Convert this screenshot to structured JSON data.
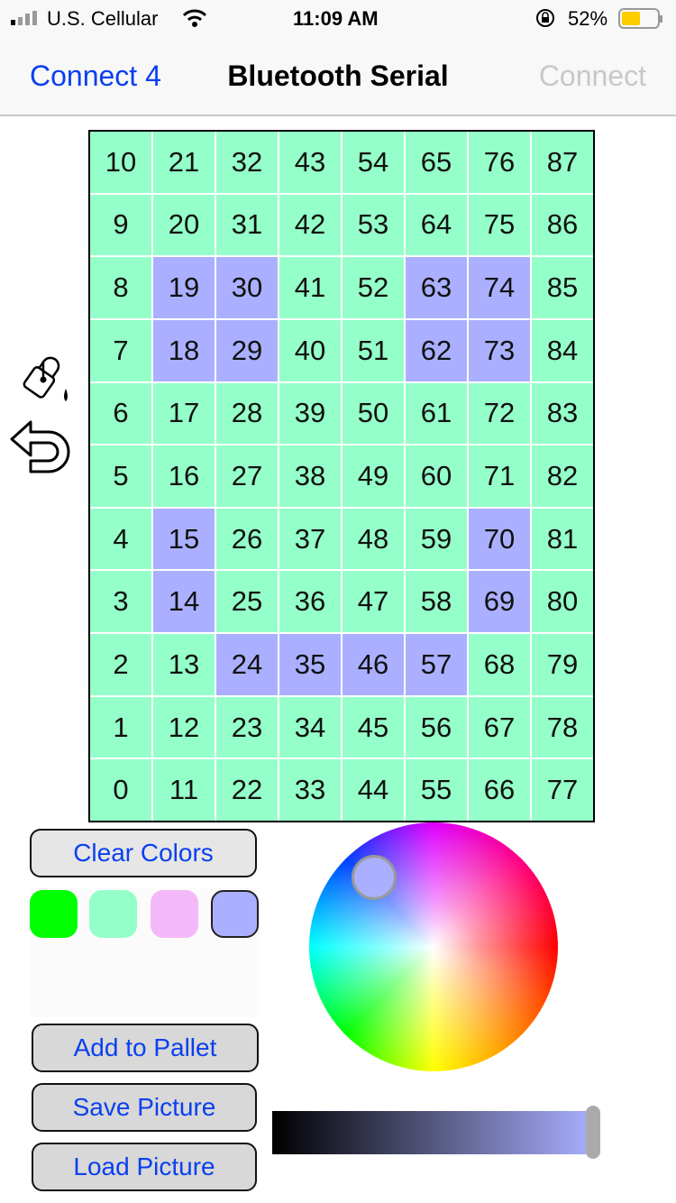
{
  "status": {
    "carrier": "U.S. Cellular",
    "time": "11:09 AM",
    "battery": "52%",
    "battery_level": 52
  },
  "nav": {
    "back": "Connect 4",
    "title": "Bluetooth Serial",
    "action": "Connect"
  },
  "colors": {
    "green": "#94ffc8",
    "purple": "#aab0ff",
    "accent": "#0a40ee"
  },
  "grid": {
    "rows": [
      [
        10,
        21,
        32,
        43,
        54,
        65,
        76,
        87
      ],
      [
        9,
        20,
        31,
        42,
        53,
        64,
        75,
        86
      ],
      [
        8,
        19,
        30,
        41,
        52,
        63,
        74,
        85
      ],
      [
        7,
        18,
        29,
        40,
        51,
        62,
        73,
        84
      ],
      [
        6,
        17,
        28,
        39,
        50,
        61,
        72,
        83
      ],
      [
        5,
        16,
        27,
        38,
        49,
        60,
        71,
        82
      ],
      [
        4,
        15,
        26,
        37,
        48,
        59,
        70,
        81
      ],
      [
        3,
        14,
        25,
        36,
        47,
        58,
        69,
        80
      ],
      [
        2,
        13,
        24,
        35,
        46,
        57,
        68,
        79
      ],
      [
        1,
        12,
        23,
        34,
        45,
        56,
        67,
        78
      ],
      [
        0,
        11,
        22,
        33,
        44,
        55,
        66,
        77
      ]
    ],
    "purple_cells": [
      19,
      30,
      63,
      74,
      18,
      29,
      62,
      73,
      15,
      70,
      14,
      69,
      24,
      35,
      46,
      57
    ]
  },
  "tools": {
    "fill": "paint-bucket-icon",
    "undo": "undo-icon"
  },
  "buttons": {
    "clear": "Clear Colors",
    "add": "Add to Pallet",
    "save": "Save Picture",
    "load": "Load Picture"
  },
  "palette": [
    "#00ff00",
    "#94ffc8",
    "#f4b8f8",
    "#aab0ff"
  ],
  "picker": {
    "selected": "#aab0ff",
    "brightness": 1.0
  }
}
